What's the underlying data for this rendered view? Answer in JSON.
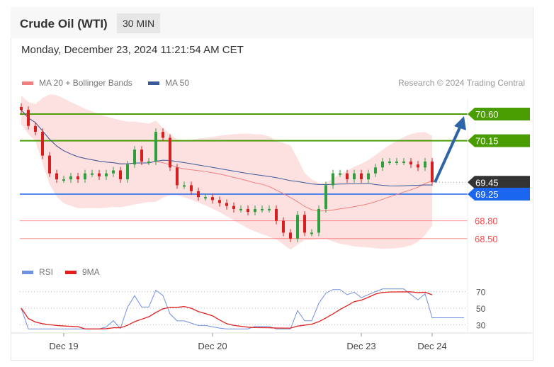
{
  "header": {
    "title": "Crude Oil (WTI)",
    "timeframe": "30 MIN",
    "datetime": "Monday, December 23, 2024 11:21:54 AM CET",
    "copyright": "Research © 2024 Trading Central"
  },
  "legend": {
    "ma20": "MA 20 + Bollinger Bands",
    "ma50": "MA 50",
    "rsi": "RSI",
    "ma9": "9MA"
  },
  "colors": {
    "ma20": "#f08080",
    "ma50": "#3a5a9a",
    "resistance": "#4a9d00",
    "pivot": "#1a66ee",
    "last": "#333333",
    "support": "#ff4d4d",
    "arrow": "#2e63a8",
    "bull": "#2e9e3e",
    "bear": "#d62020",
    "rsi": "#7090e0",
    "ma9": "#e02020"
  },
  "chart_data": {
    "type": "candlestick",
    "closes": [
      70.67,
      70.4,
      70.3,
      69.9,
      69.6,
      69.5,
      69.5,
      69.55,
      69.5,
      69.6,
      69.6,
      69.55,
      69.6,
      69.65,
      69.5,
      69.75,
      70.0,
      69.8,
      69.8,
      70.3,
      70.2,
      69.7,
      69.4,
      69.4,
      69.3,
      69.2,
      69.2,
      69.15,
      69.1,
      69.05,
      69.0,
      69.0,
      68.95,
      69.0,
      69.0,
      69.0,
      68.8,
      68.6,
      68.5,
      68.9,
      68.6,
      68.6,
      69.0,
      69.4,
      69.6,
      69.6,
      69.5,
      69.6,
      69.5,
      69.6,
      69.7,
      69.8,
      69.8,
      69.8,
      69.8,
      69.75,
      69.7,
      69.8,
      69.45
    ],
    "ylim": [
      68.2,
      70.75
    ],
    "levels": [
      {
        "label": "70.60",
        "value": 70.6,
        "type": "resistance"
      },
      {
        "label": "70.15",
        "value": 70.15,
        "type": "resistance"
      },
      {
        "label": "69.45",
        "value": 69.45,
        "type": "last"
      },
      {
        "label": "69.25",
        "value": 69.25,
        "type": "pivot"
      },
      {
        "label": "68.80",
        "value": 68.8,
        "type": "support"
      },
      {
        "label": "68.50",
        "value": 68.5,
        "type": "support"
      }
    ],
    "target": 70.6,
    "x_ticks": [
      {
        "label": "Dec 19",
        "index": 6
      },
      {
        "label": "Dec 20",
        "index": 27
      },
      {
        "label": "Dec 23",
        "index": 48
      },
      {
        "label": "Dec 24",
        "index": 58
      }
    ],
    "rsi_ticks": [
      {
        "label": "70",
        "value": 70
      },
      {
        "label": "50",
        "value": 50
      },
      {
        "label": "30",
        "value": 30
      }
    ]
  }
}
